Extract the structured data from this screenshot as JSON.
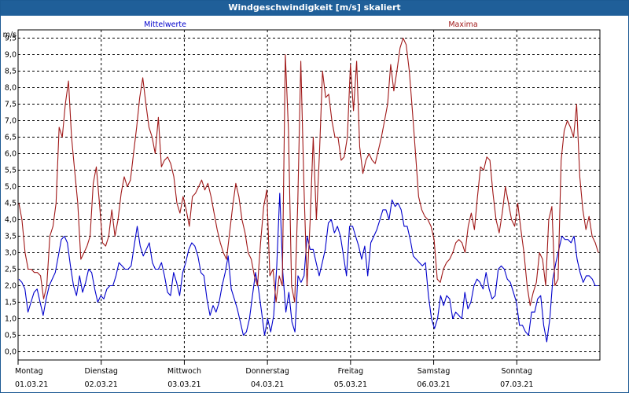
{
  "window": {
    "title": "Windgeschwindigkeit [m/s] skaliert"
  },
  "chart_data": {
    "type": "line",
    "title": "Windgeschwindigkeit [m/s] skaliert",
    "ylabel": "m/s",
    "ylim": [
      -0.25,
      9.75
    ],
    "yticks": [
      "0,0",
      "0,5",
      "1,0",
      "1,5",
      "2,0",
      "2,5",
      "3,0",
      "3,5",
      "4,0",
      "4,5",
      "5,0",
      "5,5",
      "6,0",
      "6,5",
      "7,0",
      "7,5",
      "8,0",
      "8,5",
      "9,0",
      "9,5"
    ],
    "x_ticks": [
      {
        "day": "Montag",
        "date": "01.03.21"
      },
      {
        "day": "Dienstag",
        "date": "02.03.21"
      },
      {
        "day": "Mittwoch",
        "date": "03.03.21"
      },
      {
        "day": "Donnerstag",
        "date": "04.03.21"
      },
      {
        "day": "Freitag",
        "date": "05.03.21"
      },
      {
        "day": "Samstag",
        "date": "06.03.21"
      },
      {
        "day": "Sonntag",
        "date": "07.03.21"
      }
    ],
    "grid": true,
    "legend_position": "top",
    "series": [
      {
        "name": "Mittelwerte",
        "color": "#0000cc",
        "values": [
          2.2,
          2.1,
          1.9,
          1.2,
          1.5,
          1.8,
          1.9,
          1.5,
          1.1,
          1.6,
          2.0,
          2.2,
          2.4,
          2.9,
          3.4,
          3.5,
          3.3,
          2.6,
          2.0,
          1.7,
          2.3,
          1.8,
          2.1,
          2.5,
          2.4,
          1.9,
          1.5,
          1.7,
          1.6,
          1.9,
          2.0,
          2.0,
          2.3,
          2.7,
          2.6,
          2.5,
          2.5,
          2.6,
          3.2,
          3.8,
          3.2,
          2.9,
          3.1,
          3.3,
          2.7,
          2.5,
          2.5,
          2.7,
          2.3,
          1.8,
          1.7,
          2.4,
          2.1,
          1.7,
          2.4,
          2.7,
          3.1,
          3.3,
          3.2,
          2.9,
          2.4,
          2.3,
          1.6,
          1.1,
          1.4,
          1.2,
          1.5,
          2.0,
          2.4,
          2.9,
          1.9,
          1.6,
          1.3,
          0.9,
          0.5,
          0.6,
          1.0,
          1.7,
          2.4,
          1.9,
          1.2,
          0.5,
          1.0,
          0.6,
          1.1,
          2.6,
          4.8,
          2.4,
          1.2,
          1.8,
          0.9,
          0.6,
          2.3,
          2.1,
          2.3,
          3.5,
          3.1,
          3.1,
          2.7,
          2.3,
          2.7,
          3.1,
          3.9,
          4.0,
          3.6,
          3.8,
          3.5,
          2.9,
          2.3,
          3.8,
          3.8,
          3.5,
          3.2,
          2.8,
          3.2,
          2.3,
          3.3,
          3.5,
          3.7,
          4.0,
          4.3,
          4.3,
          4.0,
          4.6,
          4.4,
          4.5,
          4.3,
          3.8,
          3.8,
          3.4,
          2.9,
          2.8,
          2.7,
          2.6,
          2.7,
          1.7,
          1.0,
          0.7,
          1.0,
          1.7,
          1.4,
          1.7,
          1.6,
          1.0,
          1.2,
          1.1,
          1.0,
          1.8,
          1.3,
          1.5,
          2.0,
          2.2,
          2.1,
          1.9,
          2.4,
          1.9,
          1.6,
          1.7,
          2.5,
          2.6,
          2.5,
          2.2,
          2.1,
          1.8,
          1.5,
          0.8,
          0.8,
          0.6,
          0.5,
          1.2,
          1.2,
          1.6,
          1.7,
          0.8,
          0.3,
          1.0,
          2.2,
          2.7,
          3.1,
          3.5,
          3.4,
          3.4,
          3.3,
          3.5,
          2.8,
          2.4,
          2.1,
          2.3,
          2.3,
          2.2,
          2.0,
          2.0
        ]
      },
      {
        "name": "Maxima",
        "color": "#a01818",
        "values": [
          4.5,
          4.0,
          3.0,
          2.5,
          2.5,
          2.4,
          2.4,
          2.3,
          1.6,
          2.0,
          3.5,
          3.8,
          4.5,
          6.8,
          6.5,
          7.5,
          8.2,
          6.5,
          5.5,
          4.5,
          2.8,
          3.0,
          3.2,
          3.5,
          5.1,
          5.6,
          4.5,
          3.3,
          3.2,
          3.5,
          4.3,
          3.5,
          4.0,
          4.8,
          5.3,
          5.0,
          5.2,
          6.0,
          6.8,
          7.7,
          8.3,
          7.5,
          6.8,
          6.5,
          6.0,
          7.1,
          5.6,
          5.8,
          5.9,
          5.7,
          5.3,
          4.5,
          4.2,
          4.7,
          4.3,
          3.8,
          4.7,
          4.8,
          5.0,
          5.2,
          4.9,
          5.1,
          4.7,
          4.2,
          3.7,
          3.3,
          3.0,
          2.8,
          3.6,
          4.4,
          5.1,
          4.7,
          4.0,
          3.6,
          3.0,
          2.8,
          2.3,
          2.0,
          3.3,
          4.4,
          4.9,
          2.3,
          2.5,
          1.5,
          2.3,
          2.0,
          9.0,
          6.7,
          2.0,
          1.5,
          4.5,
          8.8,
          5.0,
          2.0,
          4.0,
          6.5,
          4.0,
          6.0,
          8.5,
          7.7,
          7.8,
          7.0,
          6.5,
          6.5,
          5.8,
          5.9,
          6.5,
          8.7,
          7.3,
          8.8,
          6.2,
          5.4,
          5.8,
          6.0,
          5.8,
          5.7,
          6.1,
          6.5,
          7.0,
          7.5,
          8.7,
          7.9,
          8.5,
          9.2,
          9.5,
          9.3,
          8.5,
          7.3,
          6.0,
          4.7,
          4.3,
          4.1,
          4.0,
          3.8,
          3.4,
          2.2,
          2.1,
          2.5,
          2.7,
          2.8,
          3.0,
          3.3,
          3.4,
          3.3,
          3.0,
          3.8,
          4.2,
          3.7,
          4.7,
          5.6,
          5.5,
          5.9,
          5.8,
          4.8,
          4.0,
          3.6,
          4.2,
          5.0,
          4.5,
          4.0,
          3.8,
          4.5,
          3.7,
          3.0,
          2.0,
          1.4,
          1.8,
          2.1,
          3.0,
          2.8,
          2.0,
          4.0,
          4.4,
          2.0,
          2.2,
          5.8,
          6.7,
          7.0,
          6.8,
          6.5,
          7.5,
          5.3,
          4.3,
          3.7,
          4.1,
          3.5,
          3.3,
          3.0
        ]
      }
    ]
  }
}
